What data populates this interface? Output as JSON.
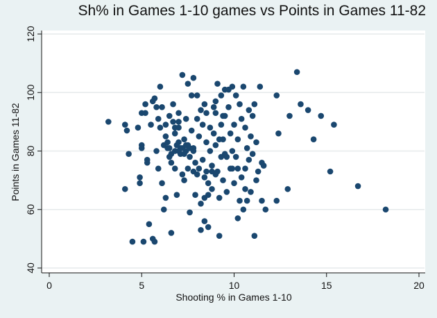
{
  "chart_data": {
    "type": "scatter",
    "title": "Sh% in Games 1-10 games vs Points in Games 11-82",
    "xlabel": "Shooting % in Games 1-10",
    "ylabel": "Points in Games 11-82",
    "xlim": [
      0,
      20
    ],
    "ylim": [
      40,
      120
    ],
    "xticks": [
      "0",
      "5",
      "10",
      "15",
      "20"
    ],
    "yticks": [
      "40",
      "60",
      "80",
      "100",
      "120"
    ],
    "grid": true,
    "marker_color": "#1a476f",
    "points": [
      [
        3.2,
        90
      ],
      [
        4.1,
        89
      ],
      [
        4.2,
        87
      ],
      [
        4.1,
        67
      ],
      [
        4.3,
        79
      ],
      [
        4.5,
        49
      ],
      [
        4.8,
        88
      ],
      [
        4.9,
        71
      ],
      [
        4.9,
        69
      ],
      [
        5.0,
        93
      ],
      [
        5.0,
        82
      ],
      [
        5.0,
        81
      ],
      [
        5.1,
        49
      ],
      [
        5.2,
        93
      ],
      [
        5.2,
        96
      ],
      [
        5.3,
        77
      ],
      [
        5.3,
        76
      ],
      [
        5.4,
        55
      ],
      [
        5.6,
        50
      ],
      [
        5.7,
        49
      ],
      [
        5.5,
        89
      ],
      [
        5.6,
        97
      ],
      [
        5.7,
        98
      ],
      [
        5.8,
        80
      ],
      [
        5.8,
        95
      ],
      [
        5.9,
        91
      ],
      [
        6.0,
        102
      ],
      [
        6.1,
        95
      ],
      [
        6.0,
        88
      ],
      [
        6.1,
        69
      ],
      [
        6.2,
        60
      ],
      [
        6.2,
        82
      ],
      [
        6.3,
        89
      ],
      [
        6.3,
        85
      ],
      [
        6.4,
        83
      ],
      [
        6.4,
        81
      ],
      [
        6.5,
        92
      ],
      [
        6.5,
        78
      ],
      [
        6.6,
        76
      ],
      [
        6.6,
        52
      ],
      [
        6.7,
        96
      ],
      [
        6.7,
        90
      ],
      [
        6.8,
        86
      ],
      [
        6.8,
        74
      ],
      [
        6.9,
        65
      ],
      [
        7.0,
        93
      ],
      [
        7.0,
        88
      ],
      [
        7.0,
        83
      ],
      [
        7.1,
        81
      ],
      [
        7.1,
        79
      ],
      [
        7.2,
        106
      ],
      [
        7.2,
        72
      ],
      [
        7.3,
        70
      ],
      [
        7.3,
        84
      ],
      [
        7.4,
        91
      ],
      [
        7.4,
        80
      ],
      [
        7.5,
        103
      ],
      [
        7.5,
        82
      ],
      [
        7.6,
        78
      ],
      [
        7.6,
        59
      ],
      [
        7.7,
        99
      ],
      [
        7.7,
        87
      ],
      [
        7.8,
        105
      ],
      [
        7.8,
        81
      ],
      [
        7.9,
        76
      ],
      [
        7.9,
        65
      ],
      [
        8.0,
        99
      ],
      [
        8.0,
        91
      ],
      [
        8.1,
        85
      ],
      [
        8.1,
        74
      ],
      [
        8.2,
        53
      ],
      [
        8.2,
        62
      ],
      [
        8.3,
        89
      ],
      [
        8.3,
        77
      ],
      [
        8.4,
        71
      ],
      [
        8.4,
        56
      ],
      [
        8.5,
        93
      ],
      [
        8.5,
        83
      ],
      [
        8.6,
        69
      ],
      [
        8.6,
        54
      ],
      [
        8.7,
        88
      ],
      [
        8.7,
        80
      ],
      [
        8.8,
        75
      ],
      [
        8.8,
        67
      ],
      [
        8.9,
        95
      ],
      [
        8.9,
        86
      ],
      [
        9.0,
        97
      ],
      [
        9.0,
        82
      ],
      [
        9.1,
        103
      ],
      [
        9.1,
        73
      ],
      [
        9.2,
        51
      ],
      [
        9.2,
        64
      ],
      [
        9.3,
        99
      ],
      [
        9.3,
        89
      ],
      [
        9.4,
        84
      ],
      [
        9.4,
        70
      ],
      [
        9.5,
        101
      ],
      [
        9.5,
        92
      ],
      [
        9.6,
        78
      ],
      [
        9.6,
        66
      ],
      [
        9.7,
        101
      ],
      [
        9.7,
        95
      ],
      [
        9.8,
        86
      ],
      [
        9.8,
        74
      ],
      [
        9.9,
        102
      ],
      [
        9.9,
        80
      ],
      [
        10.0,
        89
      ],
      [
        10.0,
        69
      ],
      [
        10.1,
        99
      ],
      [
        10.1,
        78
      ],
      [
        10.2,
        57
      ],
      [
        10.2,
        84
      ],
      [
        10.3,
        96
      ],
      [
        10.3,
        63
      ],
      [
        10.4,
        91
      ],
      [
        10.4,
        71
      ],
      [
        10.5,
        102
      ],
      [
        10.5,
        60
      ],
      [
        10.6,
        88
      ],
      [
        10.6,
        74
      ],
      [
        10.7,
        81
      ],
      [
        10.7,
        63
      ],
      [
        10.8,
        94
      ],
      [
        10.8,
        77
      ],
      [
        10.9,
        85
      ],
      [
        10.9,
        66
      ],
      [
        11.0,
        92
      ],
      [
        11.0,
        79
      ],
      [
        11.1,
        51
      ],
      [
        11.1,
        96
      ],
      [
        11.2,
        83
      ],
      [
        11.2,
        70
      ],
      [
        11.3,
        73
      ],
      [
        11.4,
        102
      ],
      [
        11.5,
        63
      ],
      [
        11.5,
        76
      ],
      [
        11.6,
        75
      ],
      [
        11.7,
        60
      ],
      [
        12.3,
        99
      ],
      [
        12.3,
        63
      ],
      [
        12.4,
        86
      ],
      [
        12.9,
        67
      ],
      [
        13.0,
        92
      ],
      [
        13.4,
        107
      ],
      [
        13.6,
        96
      ],
      [
        14.0,
        94
      ],
      [
        14.3,
        84
      ],
      [
        14.7,
        92
      ],
      [
        15.2,
        73
      ],
      [
        15.4,
        89
      ],
      [
        16.7,
        68
      ],
      [
        18.2,
        60
      ],
      [
        6.5,
        81
      ],
      [
        6.8,
        80
      ],
      [
        7.0,
        80
      ],
      [
        7.2,
        81
      ],
      [
        7.4,
        82
      ],
      [
        7.6,
        81
      ],
      [
        7.8,
        80
      ],
      [
        6.9,
        82
      ],
      [
        7.3,
        79
      ],
      [
        6.6,
        79
      ],
      [
        8.5,
        73
      ],
      [
        8.8,
        73
      ],
      [
        9.0,
        72
      ],
      [
        9.3,
        78
      ],
      [
        9.5,
        79
      ],
      [
        8.2,
        94
      ],
      [
        8.4,
        96
      ],
      [
        9.0,
        93
      ],
      [
        9.4,
        92
      ],
      [
        7.5,
        74
      ],
      [
        7.8,
        73
      ],
      [
        8.0,
        72
      ],
      [
        6.8,
        88
      ],
      [
        7.0,
        90
      ],
      [
        9.9,
        74
      ],
      [
        10.2,
        74
      ],
      [
        10.6,
        67
      ],
      [
        8.4,
        64
      ],
      [
        8.6,
        65
      ],
      [
        9.2,
        84
      ],
      [
        5.9,
        74
      ],
      [
        6.3,
        64
      ]
    ]
  }
}
